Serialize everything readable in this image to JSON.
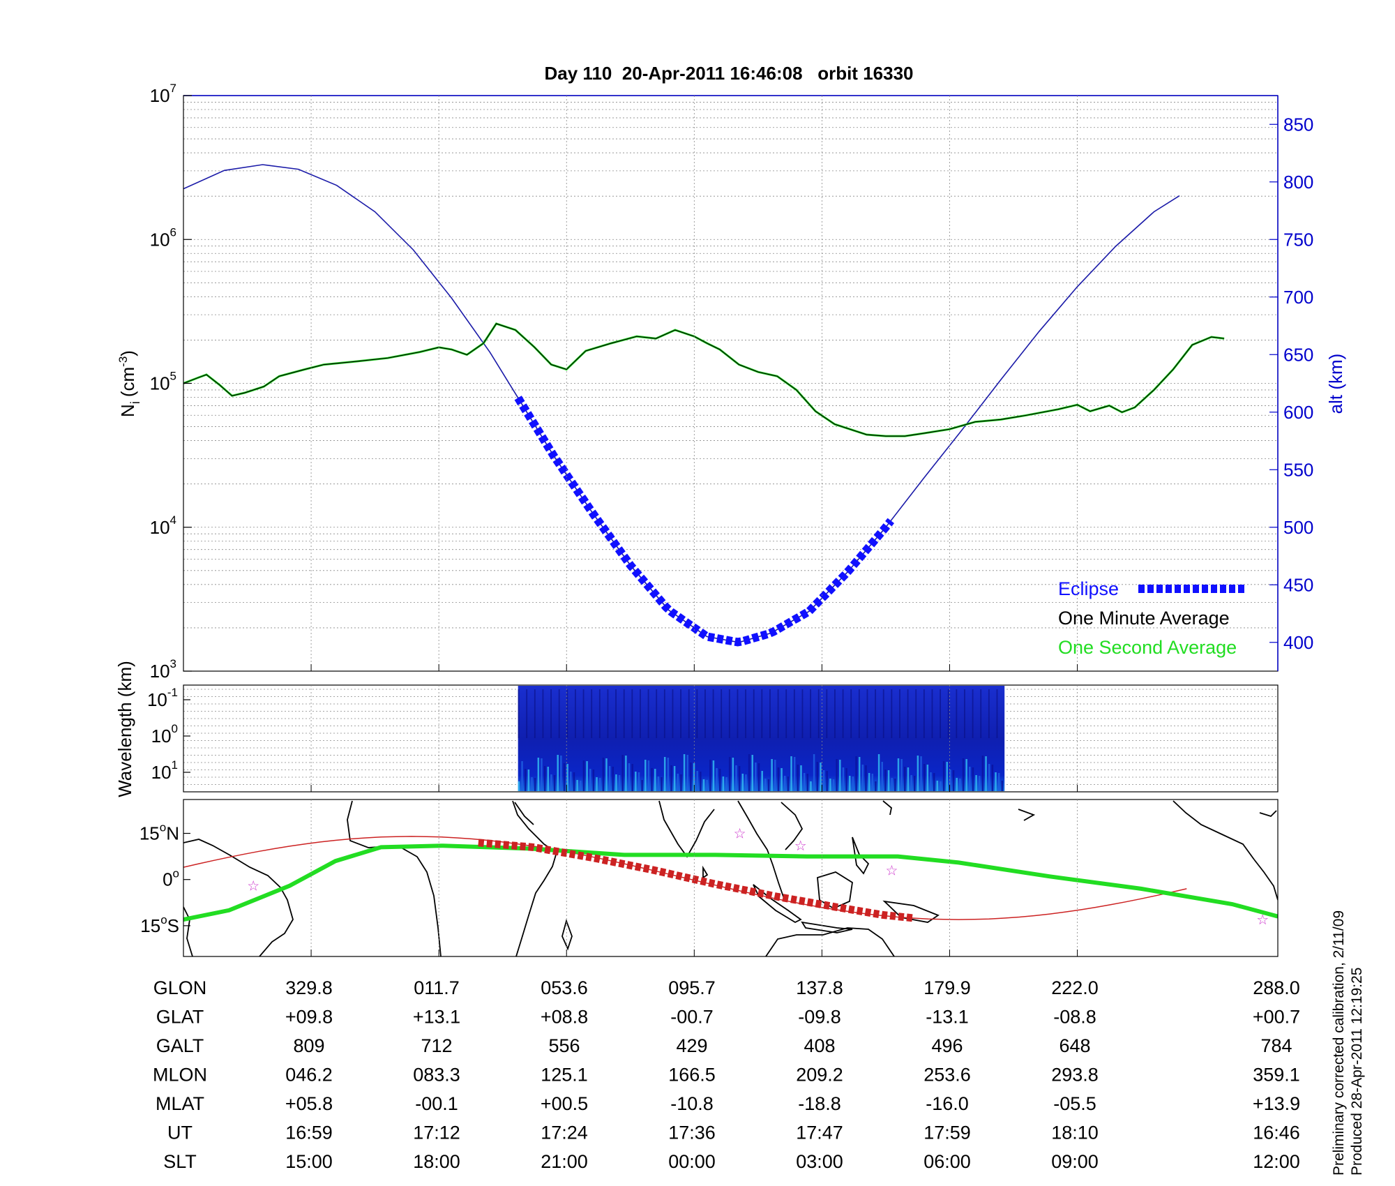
{
  "chart_data": [
    {
      "type": "line",
      "panel": "density",
      "title": "Day 110  20-Apr-2011 16:46:08   orbit 16330",
      "ylabel": "N_i (cm^-3)",
      "ylabel_main": "N",
      "ylabel_sub": "i",
      "ylabel_unit": "(cm",
      "ylabel_exp": "-3",
      "ylabel_close": ")",
      "y_scale": "log",
      "ylim": [
        1000,
        10000000
      ],
      "yticks": [
        {
          "base": "10",
          "exp": "3",
          "value": 1000
        },
        {
          "base": "10",
          "exp": "4",
          "value": 10000
        },
        {
          "base": "10",
          "exp": "5",
          "value": 100000
        },
        {
          "base": "10",
          "exp": "6",
          "value": 1000000
        },
        {
          "base": "10",
          "exp": "7",
          "value": 10000000
        }
      ],
      "y2label": "alt (km)",
      "y2lim": [
        375,
        875
      ],
      "y2ticks": [
        "400",
        "450",
        "500",
        "550",
        "600",
        "650",
        "700",
        "750",
        "800",
        "850"
      ],
      "xlim": [
        0,
        8.57
      ],
      "grid": true,
      "legend": {
        "placement": "bottom-right",
        "entries": [
          {
            "label": "Eclipse",
            "color": "#1010ff",
            "style": "dashed-thick"
          },
          {
            "label": "One Minute Average",
            "color": "#000000"
          },
          {
            "label": "One Second Average",
            "color": "#22dd22"
          }
        ]
      },
      "series": [
        {
          "name": "One Second Average",
          "color": "#22dd22",
          "x": [
            0,
            0.12,
            0.18,
            0.28,
            0.38,
            0.48,
            0.63,
            0.75,
            0.95,
            1.1,
            1.35,
            1.6,
            1.85,
            2.0,
            2.1,
            2.22,
            2.35,
            2.45,
            2.6,
            2.75,
            2.88,
            3.0,
            3.15,
            3.35,
            3.55,
            3.7,
            3.85,
            4.0,
            4.1,
            4.2,
            4.35,
            4.5,
            4.65,
            4.8,
            4.95,
            5.1,
            5.25,
            5.35,
            5.5,
            5.65,
            5.8,
            6.0,
            6.2,
            6.4,
            6.6,
            6.85,
            7.0,
            7.1,
            7.25,
            7.35,
            7.45,
            7.6,
            7.75,
            7.9,
            8.05,
            8.15
          ],
          "y": [
            100000,
            110000,
            115000,
            98000,
            82000,
            86000,
            95000,
            112000,
            125000,
            135000,
            142000,
            150000,
            165000,
            178000,
            172000,
            158000,
            190000,
            260000,
            235000,
            178000,
            135000,
            125000,
            168000,
            190000,
            212000,
            205000,
            235000,
            212000,
            190000,
            172000,
            135000,
            120000,
            112000,
            90000,
            64000,
            52000,
            47000,
            44000,
            43000,
            43000,
            45000,
            48000,
            54000,
            56000,
            60000,
            66000,
            71000,
            64000,
            70000,
            63000,
            68000,
            90000,
            125000,
            185000,
            210000,
            205000
          ]
        },
        {
          "name": "One Minute Average",
          "color": "#000000",
          "x": [
            0,
            0.12,
            0.18,
            0.28,
            0.38,
            0.48,
            0.63,
            0.75,
            0.95,
            1.1,
            1.35,
            1.6,
            1.85,
            2.0,
            2.1,
            2.22,
            2.35,
            2.45,
            2.6,
            2.75,
            2.88,
            3.0,
            3.15,
            3.35,
            3.55,
            3.7,
            3.85,
            4.0,
            4.1,
            4.2,
            4.35,
            4.5,
            4.65,
            4.8,
            4.95,
            5.1,
            5.25,
            5.35,
            5.5,
            5.65,
            5.8,
            6.0,
            6.2,
            6.4,
            6.6,
            6.85,
            7.0,
            7.1,
            7.25,
            7.35,
            7.45,
            7.6,
            7.75,
            7.9,
            8.05,
            8.15
          ],
          "y": [
            100000,
            110000,
            115000,
            98000,
            82000,
            86000,
            95000,
            112000,
            125000,
            135000,
            142000,
            150000,
            165000,
            178000,
            172000,
            158000,
            190000,
            260000,
            235000,
            178000,
            135000,
            125000,
            168000,
            190000,
            212000,
            205000,
            235000,
            212000,
            190000,
            172000,
            135000,
            120000,
            112000,
            90000,
            64000,
            52000,
            47000,
            44000,
            43000,
            43000,
            45000,
            48000,
            54000,
            56000,
            60000,
            66000,
            71000,
            64000,
            70000,
            63000,
            68000,
            90000,
            125000,
            185000,
            210000,
            205000
          ]
        },
        {
          "name": "alt",
          "axis": "y2",
          "color": "#1a1aa8",
          "x": [
            0,
            0.32,
            0.62,
            0.9,
            1.2,
            1.5,
            1.8,
            2.1,
            2.4,
            2.65,
            2.9,
            3.2,
            3.5,
            3.8,
            4.1,
            4.35,
            4.6,
            4.9,
            5.2,
            5.5,
            5.8,
            6.1,
            6.4,
            6.7,
            7.0,
            7.3,
            7.6,
            7.8
          ],
          "y": [
            794,
            810,
            815,
            811,
            797,
            774,
            741,
            699,
            652,
            607,
            562,
            513,
            467,
            428,
            405,
            400,
            408,
            427,
            461,
            500,
            543,
            585,
            628,
            670,
            709,
            744,
            774,
            788
          ]
        }
      ],
      "eclipse": {
        "x_start": 2.62,
        "x_end": 5.55,
        "color": "#1010ff"
      }
    },
    {
      "type": "heatmap",
      "panel": "spectrogram",
      "ylabel": "Wavelength (km)",
      "yticks": [
        {
          "base": "10",
          "exp": "-1"
        },
        {
          "base": "10",
          "exp": "0"
        },
        {
          "base": "10",
          "exp": "1"
        }
      ],
      "x_start": 2.62,
      "x_end": 6.43
    },
    {
      "type": "map",
      "panel": "ground-track",
      "yticks": [
        {
          "deg": "15",
          "dir": "N",
          "lat": 15
        },
        {
          "deg": "0",
          "dir": "",
          "lat": 0
        },
        {
          "deg": "15",
          "dir": "S",
          "lat": -15
        }
      ],
      "ylim": [
        -25,
        26
      ],
      "xlim": [
        -45,
        315
      ]
    }
  ],
  "table": {
    "rows": [
      {
        "label": "GLON",
        "values": [
          "329.8",
          "011.7",
          "053.6",
          "095.7",
          "137.8",
          "179.9",
          "222.0",
          "288.0"
        ]
      },
      {
        "label": "GLAT",
        "values": [
          "+09.8",
          "+13.1",
          "+08.8",
          "-00.7",
          "-09.8",
          "-13.1",
          "-08.8",
          "+00.7"
        ]
      },
      {
        "label": "GALT",
        "values": [
          "809",
          "712",
          "556",
          "429",
          "408",
          "496",
          "648",
          "784"
        ]
      },
      {
        "label": "MLON",
        "values": [
          "046.2",
          "083.3",
          "125.1",
          "166.5",
          "209.2",
          "253.6",
          "293.8",
          "359.1"
        ]
      },
      {
        "label": "MLAT",
        "values": [
          "+05.8",
          "-00.1",
          "+00.5",
          "-10.8",
          "-18.8",
          "-16.0",
          "-05.5",
          "+13.9"
        ]
      },
      {
        "label": "UT",
        "values": [
          "16:59",
          "17:12",
          "17:24",
          "17:36",
          "17:47",
          "17:59",
          "18:10",
          "16:46"
        ]
      },
      {
        "label": "SLT",
        "values": [
          "15:00",
          "18:00",
          "21:00",
          "00:00",
          "03:00",
          "06:00",
          "09:00",
          "12:00"
        ]
      }
    ]
  },
  "footnote": {
    "line1": "Preliminary corrected calibration, 2/11/09",
    "line2": "Produced 28-Apr-2011 12:19:25"
  },
  "colors": {
    "alt_line": "#1a1aa8",
    "eclipse": "#1010ff",
    "one_second": "#22dd22",
    "one_minute": "#000000",
    "ground_track_green": "#22dd22",
    "ground_track_red": "#cc2222",
    "mag_star": "#cc33cc",
    "right_axis": "#0000cc"
  }
}
